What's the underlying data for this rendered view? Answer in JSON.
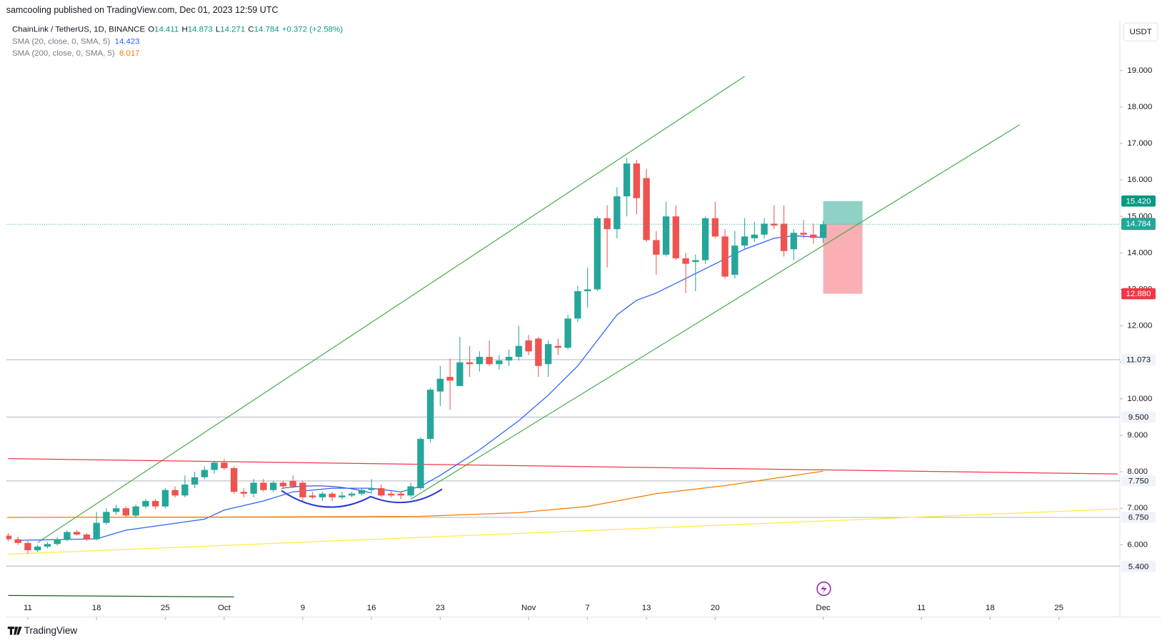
{
  "chart_data": {
    "type": "candlestick",
    "published": "samcooling published on TradingView.com, Dec 01, 2023 12:59 UTC",
    "title": "ChainLink / TetherUS, 1D, BINANCE",
    "ohlc_legend": [
      {
        "key": "O",
        "value": "14.411"
      },
      {
        "key": "H",
        "value": "14.873"
      },
      {
        "key": "L",
        "value": "14.271"
      },
      {
        "key": "C",
        "value": "14.784"
      }
    ],
    "change": "+0.372 (+2.58%)",
    "currency": "USDT",
    "brand": "TradingView",
    "up_color": "#26a69a",
    "down_color": "#ef5350",
    "x": [
      "2023-09-09",
      "2023-09-10",
      "2023-09-11",
      "2023-09-12",
      "2023-09-13",
      "2023-09-14",
      "2023-09-15",
      "2023-09-16",
      "2023-09-17",
      "2023-09-18",
      "2023-09-19",
      "2023-09-20",
      "2023-09-21",
      "2023-09-22",
      "2023-09-23",
      "2023-09-24",
      "2023-09-25",
      "2023-09-26",
      "2023-09-27",
      "2023-09-28",
      "2023-09-29",
      "2023-09-30",
      "2023-10-01",
      "2023-10-02",
      "2023-10-03",
      "2023-10-04",
      "2023-10-05",
      "2023-10-06",
      "2023-10-07",
      "2023-10-08",
      "2023-10-09",
      "2023-10-10",
      "2023-10-11",
      "2023-10-12",
      "2023-10-13",
      "2023-10-14",
      "2023-10-15",
      "2023-10-16",
      "2023-10-17",
      "2023-10-18",
      "2023-10-19",
      "2023-10-20",
      "2023-10-21",
      "2023-10-22",
      "2023-10-23",
      "2023-10-24",
      "2023-10-25",
      "2023-10-26",
      "2023-10-27",
      "2023-10-28",
      "2023-10-29",
      "2023-10-30",
      "2023-10-31",
      "2023-11-01",
      "2023-11-02",
      "2023-11-03",
      "2023-11-04",
      "2023-11-05",
      "2023-11-06",
      "2023-11-07",
      "2023-11-08",
      "2023-11-09",
      "2023-11-10",
      "2023-11-11",
      "2023-11-12",
      "2023-11-13",
      "2023-11-14",
      "2023-11-15",
      "2023-11-16",
      "2023-11-17",
      "2023-11-18",
      "2023-11-19",
      "2023-11-20",
      "2023-11-21",
      "2023-11-22",
      "2023-11-23",
      "2023-11-24",
      "2023-11-25",
      "2023-11-26",
      "2023-11-27",
      "2023-11-28",
      "2023-11-29",
      "2023-11-30",
      "2023-12-01"
    ],
    "open": [
      6.25,
      6.15,
      6.05,
      5.85,
      5.95,
      6.02,
      6.15,
      6.35,
      6.28,
      6.15,
      6.6,
      6.9,
      7.0,
      6.8,
      7.05,
      7.2,
      7.05,
      7.5,
      7.35,
      7.65,
      7.85,
      8.05,
      8.25,
      8.1,
      7.45,
      7.4,
      7.7,
      7.5,
      7.7,
      7.75,
      7.7,
      7.35,
      7.3,
      7.4,
      7.3,
      7.35,
      7.4,
      7.5,
      7.55,
      7.4,
      7.4,
      7.35,
      7.55,
      8.9,
      10.2,
      10.6,
      10.35,
      11.0,
      10.95,
      11.15,
      10.95,
      11.05,
      11.15,
      11.6,
      11.65,
      10.95,
      11.45,
      11.4,
      12.2,
      12.95,
      13.0,
      14.95,
      14.65,
      15.55,
      16.45,
      16.05,
      14.35,
      13.95,
      15.0,
      13.85,
      13.75,
      13.8,
      14.95,
      14.45,
      13.4,
      14.2,
      14.4,
      14.5,
      14.8,
      14.8,
      14.1,
      14.55,
      14.5,
      14.411
    ],
    "high": [
      6.32,
      6.22,
      6.1,
      6.0,
      6.08,
      6.2,
      6.4,
      6.4,
      6.32,
      6.9,
      7.0,
      7.1,
      7.05,
      7.1,
      7.25,
      7.25,
      7.55,
      7.6,
      7.9,
      8.0,
      8.15,
      8.3,
      8.35,
      8.15,
      7.55,
      7.8,
      7.8,
      7.75,
      7.75,
      7.9,
      7.75,
      7.45,
      7.45,
      7.45,
      7.45,
      7.45,
      7.55,
      7.8,
      7.65,
      7.5,
      7.45,
      7.7,
      8.95,
      10.3,
      10.9,
      11.1,
      11.7,
      11.45,
      11.3,
      11.6,
      11.2,
      11.35,
      12.0,
      11.75,
      11.7,
      11.6,
      11.65,
      12.3,
      13.1,
      13.6,
      15.0,
      15.3,
      15.8,
      16.6,
      16.55,
      16.3,
      14.6,
      15.4,
      15.3,
      14.0,
      13.95,
      15.0,
      15.4,
      14.65,
      14.6,
      14.95,
      14.85,
      14.95,
      15.3,
      15.3,
      14.65,
      14.9,
      14.8,
      14.873
    ],
    "low": [
      6.1,
      6.0,
      5.75,
      5.8,
      5.9,
      5.98,
      6.1,
      6.25,
      6.1,
      6.12,
      6.55,
      6.82,
      6.75,
      6.75,
      7.0,
      6.98,
      7.0,
      7.3,
      7.3,
      7.55,
      7.8,
      7.95,
      8.05,
      7.4,
      7.3,
      7.3,
      7.45,
      7.45,
      7.55,
      7.55,
      7.2,
      7.25,
      7.2,
      7.2,
      7.25,
      7.3,
      7.35,
      7.4,
      7.3,
      7.3,
      7.25,
      7.3,
      7.5,
      8.8,
      9.8,
      9.7,
      10.35,
      10.6,
      10.75,
      10.9,
      10.8,
      10.9,
      11.05,
      11.2,
      10.6,
      10.6,
      11.2,
      11.35,
      12.1,
      12.5,
      12.95,
      13.6,
      14.4,
      15.0,
      15.05,
      14.3,
      13.4,
      13.9,
      13.8,
      12.9,
      12.95,
      13.7,
      14.4,
      13.3,
      13.3,
      14.1,
      14.3,
      14.4,
      14.65,
      13.9,
      13.8,
      14.4,
      14.25,
      14.271
    ],
    "close": [
      6.15,
      6.05,
      5.85,
      5.95,
      6.02,
      6.15,
      6.35,
      6.28,
      6.15,
      6.6,
      6.9,
      7.0,
      6.8,
      7.05,
      7.2,
      7.05,
      7.5,
      7.35,
      7.65,
      7.85,
      8.05,
      8.25,
      8.1,
      7.45,
      7.4,
      7.7,
      7.5,
      7.7,
      7.6,
      7.6,
      7.3,
      7.3,
      7.4,
      7.3,
      7.35,
      7.4,
      7.5,
      7.55,
      7.35,
      7.35,
      7.35,
      7.6,
      8.9,
      10.25,
      10.55,
      10.5,
      11.0,
      10.95,
      11.15,
      10.95,
      11.05,
      11.15,
      11.45,
      11.3,
      10.9,
      11.5,
      11.4,
      12.2,
      12.95,
      13.0,
      14.95,
      14.65,
      15.55,
      16.45,
      15.5,
      14.35,
      13.95,
      15.0,
      13.85,
      13.7,
      13.8,
      14.95,
      14.45,
      13.35,
      14.2,
      14.45,
      14.5,
      14.8,
      14.75,
      14.05,
      14.55,
      14.5,
      14.411,
      14.784
    ],
    "indicators": [
      {
        "name": "SMA (20, close, 0, SMA, 5)",
        "value_label": "14.423",
        "color": "#2962ff",
        "x": [
          "2023-09-10",
          "2023-09-18",
          "2023-09-21",
          "2023-09-25",
          "2023-09-29",
          "2023-10-01",
          "2023-10-05",
          "2023-10-08",
          "2023-10-12",
          "2023-10-16",
          "2023-10-19",
          "2023-10-21",
          "2023-10-23",
          "2023-10-27",
          "2023-10-31",
          "2023-11-03",
          "2023-11-06",
          "2023-11-08",
          "2023-11-10",
          "2023-11-12",
          "2023-11-14",
          "2023-11-17",
          "2023-11-20",
          "2023-11-23",
          "2023-11-26",
          "2023-11-28",
          "2023-12-01"
        ],
        "values": [
          6.12,
          6.16,
          6.4,
          6.55,
          6.7,
          6.95,
          7.2,
          7.45,
          7.55,
          7.55,
          7.45,
          7.6,
          7.9,
          8.6,
          9.4,
          10.1,
          10.9,
          11.6,
          12.3,
          12.7,
          12.9,
          13.3,
          13.7,
          14.1,
          14.4,
          14.47,
          14.423
        ]
      },
      {
        "name": "SMA (200, close, 0, SMA, 5)",
        "value_label": "8.017",
        "color": "#f57c00",
        "x": [
          "2023-09-09",
          "2023-10-01",
          "2023-10-21",
          "2023-10-31",
          "2023-11-07",
          "2023-11-14",
          "2023-11-21",
          "2023-12-01"
        ],
        "values": [
          6.75,
          6.76,
          6.78,
          6.88,
          7.05,
          7.4,
          7.62,
          8.017
        ]
      }
    ],
    "trendlines": [
      {
        "color": "#4caf50",
        "x": [
          "2023-09-12",
          "2023-11-23"
        ],
        "values": [
          6.06,
          18.84
        ]
      },
      {
        "color": "#4caf50",
        "x": [
          "2023-10-20",
          "2023-12-21"
        ],
        "values": [
          7.25,
          17.51
        ]
      },
      {
        "color": "#f23645",
        "x": [
          "2023-09-09",
          "2023-12-31"
        ],
        "values": [
          8.36,
          7.94
        ]
      },
      {
        "color": "#ffeb3b",
        "x": [
          "2023-09-09",
          "2023-12-31"
        ],
        "values": [
          5.74,
          6.98
        ]
      },
      {
        "color": "#1b5e20",
        "x": [
          "2023-09-09",
          "2023-10-02"
        ],
        "values": [
          4.61,
          4.57
        ]
      }
    ],
    "price_lines": [
      11.073,
      {
        "value": 9.5,
        "label": "9.500"
      },
      {
        "value": 7.75,
        "label": "7.750"
      },
      {
        "value": 6.75,
        "label": "6.750"
      },
      5.416
    ],
    "extra_price_labels": [
      {
        "value": 5.4,
        "label": "5.400"
      }
    ],
    "position": {
      "x": [
        "2023-12-01",
        "2023-12-05"
      ],
      "target": {
        "value": 15.42,
        "label": "15.420"
      },
      "entry": {
        "value": 14.78,
        "label": "14.780"
      },
      "stop": {
        "value": 12.88,
        "label": "12.880"
      }
    },
    "last_price": 14.784,
    "xlim": [
      "2023-09-09",
      "2023-12-31"
    ],
    "ylim": [
      4.02,
      20.32
    ],
    "yticks": [
      {
        "value": 6,
        "label": "6.000"
      },
      {
        "value": 7,
        "label": "7.000"
      },
      {
        "value": 8,
        "label": "8.000"
      },
      {
        "value": 9,
        "label": "9.000"
      },
      {
        "value": 10,
        "label": "10.000"
      },
      {
        "value": 11,
        "label": "11.000"
      },
      {
        "value": 12,
        "label": "12.000"
      },
      {
        "value": 13,
        "label": "13.000"
      },
      {
        "value": 14,
        "label": "14.000"
      },
      {
        "value": 15,
        "label": "15.000"
      },
      {
        "value": 16,
        "label": "16.000"
      },
      {
        "value": 17,
        "label": "17.000"
      },
      {
        "value": 18,
        "label": "18.000"
      },
      {
        "value": 19,
        "label": "19.000"
      }
    ],
    "xticks": [
      {
        "value": "2023-09-11",
        "label": "11"
      },
      {
        "value": "2023-09-18",
        "label": "18"
      },
      {
        "value": "2023-09-25",
        "label": "25"
      },
      {
        "value": "2023-10-01",
        "label": "Oct"
      },
      {
        "value": "2023-10-09",
        "label": "9"
      },
      {
        "value": "2023-10-16",
        "label": "16"
      },
      {
        "value": "2023-10-23",
        "label": "23"
      },
      {
        "value": "2023-11-01",
        "label": "Nov"
      },
      {
        "value": "2023-11-07",
        "label": "7"
      },
      {
        "value": "2023-11-13",
        "label": "13"
      },
      {
        "value": "2023-11-20",
        "label": "20"
      },
      {
        "value": "2023-12-01",
        "label": "Dec"
      },
      {
        "value": "2023-12-11",
        "label": "11"
      },
      {
        "value": "2023-12-18",
        "label": "18"
      },
      {
        "value": "2023-12-25",
        "label": "25"
      }
    ]
  }
}
